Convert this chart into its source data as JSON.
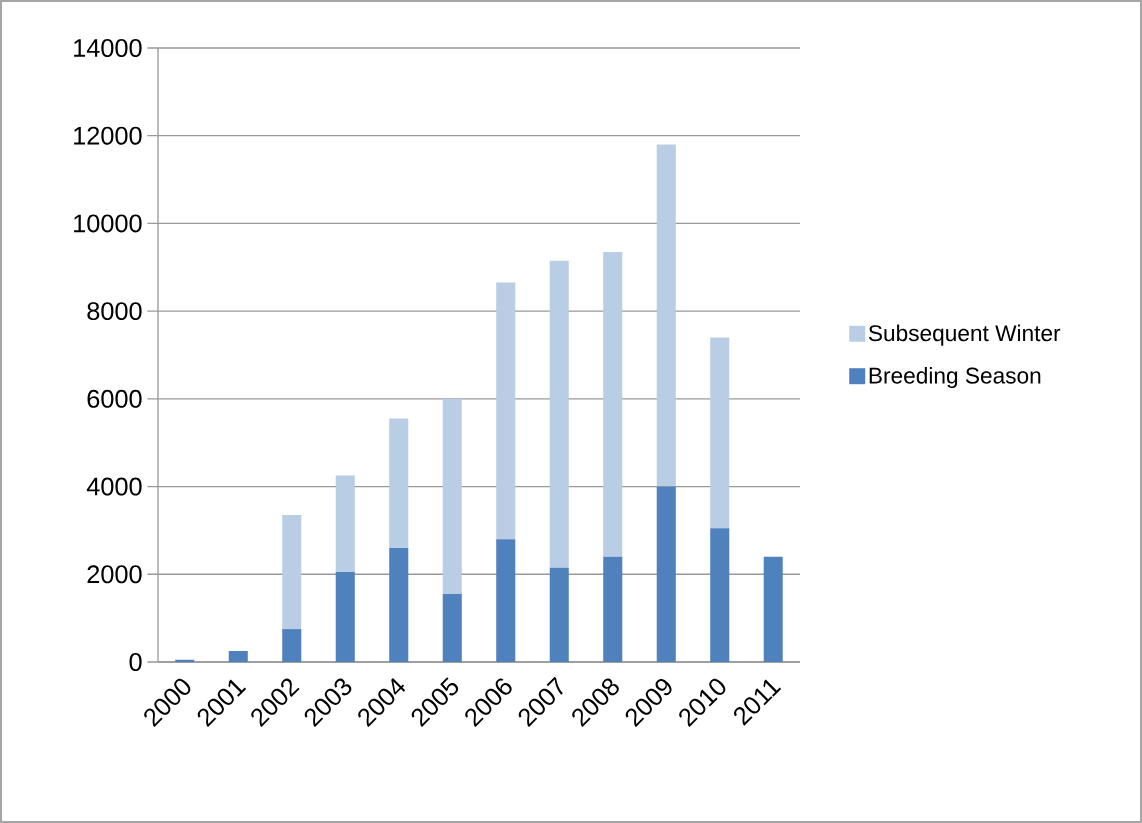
{
  "chart_data": {
    "type": "bar",
    "stacked": true,
    "categories": [
      "2000",
      "2001",
      "2002",
      "2003",
      "2004",
      "2005",
      "2006",
      "2007",
      "2008",
      "2009",
      "2010",
      "2011"
    ],
    "series": [
      {
        "name": "Breeding Season",
        "color": "#4f81bd",
        "values": [
          50,
          250,
          750,
          2050,
          2600,
          1550,
          2800,
          2150,
          2400,
          4000,
          3050,
          2400
        ]
      },
      {
        "name": "Subsequent Winter",
        "color": "#b9cde5",
        "values": [
          0,
          0,
          2600,
          2200,
          2950,
          4450,
          5850,
          7000,
          6950,
          7800,
          4350,
          0
        ]
      }
    ],
    "ylim": [
      0,
      14000
    ],
    "yticks": [
      0,
      2000,
      4000,
      6000,
      8000,
      10000,
      12000,
      14000
    ],
    "grid": "y",
    "legend": "right"
  }
}
